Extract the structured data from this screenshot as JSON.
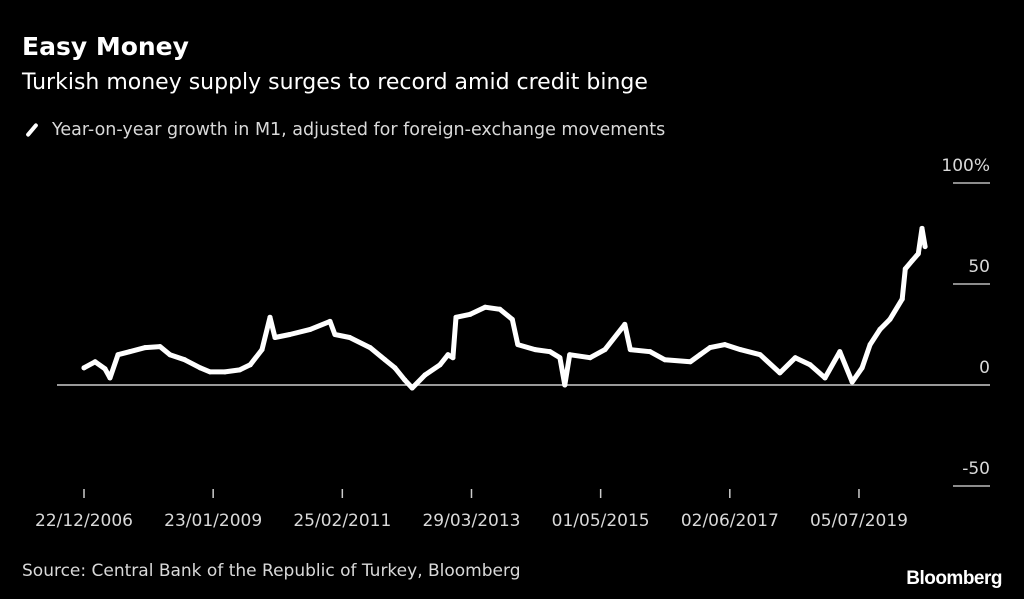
{
  "header": {
    "title": "Easy Money",
    "subtitle": "Turkish money supply surges to record amid credit binge"
  },
  "footer": {
    "source": "Source: Central Bank of the Republic of Turkey, Bloomberg",
    "logo": "Bloomberg"
  },
  "chart_data": {
    "type": "line",
    "title": "Easy Money",
    "subtitle": "Turkish money supply surges to record amid credit binge",
    "xlabel": "",
    "ylabel": "",
    "ylim": [
      -50,
      100
    ],
    "xlim": [
      2006.97,
      2020.58
    ],
    "grid": false,
    "legend_placement": "top-left",
    "y_ticks": [
      {
        "value": 100,
        "label": "100%"
      },
      {
        "value": 50,
        "label": "50"
      },
      {
        "value": 0,
        "label": "0"
      },
      {
        "value": -50,
        "label": "-50"
      }
    ],
    "x_ticks": [
      {
        "value": 2006.97,
        "label": "22/12/2006"
      },
      {
        "value": 2009.06,
        "label": "23/01/2009"
      },
      {
        "value": 2011.15,
        "label": "25/02/2011"
      },
      {
        "value": 2013.24,
        "label": "29/03/2013"
      },
      {
        "value": 2015.33,
        "label": "01/05/2015"
      },
      {
        "value": 2017.42,
        "label": "02/06/2017"
      },
      {
        "value": 2019.51,
        "label": "05/07/2019"
      }
    ],
    "series": [
      {
        "name": "Year-on-year growth in M1, adjusted for foreign-exchange movements",
        "color": "#ffffff",
        "x": [
          2006.97,
          2007.15,
          2007.31,
          2007.39,
          2007.52,
          2007.71,
          2007.96,
          2008.2,
          2008.36,
          2008.6,
          2008.85,
          2009.01,
          2009.25,
          2009.49,
          2009.66,
          2009.85,
          2009.98,
          2010.06,
          2010.3,
          2010.63,
          2010.95,
          2011.03,
          2011.27,
          2011.6,
          2011.84,
          2012.0,
          2012.16,
          2012.28,
          2012.49,
          2012.73,
          2012.86,
          2012.94,
          2012.99,
          2013.22,
          2013.46,
          2013.7,
          2013.9,
          2013.99,
          2014.27,
          2014.51,
          2014.67,
          2014.75,
          2014.83,
          2015.16,
          2015.4,
          2015.72,
          2015.81,
          2016.13,
          2016.37,
          2016.78,
          2016.94,
          2017.1,
          2017.34,
          2017.59,
          2017.91,
          2018.23,
          2018.48,
          2018.72,
          2018.96,
          2019.2,
          2019.4,
          2019.56,
          2019.69,
          2019.85,
          2020.01,
          2020.21,
          2020.26,
          2020.37,
          2020.47,
          2020.53,
          2020.58
        ],
        "values": [
          8.5,
          11.5,
          8,
          3.5,
          15,
          16.5,
          18.5,
          19,
          15,
          12.5,
          8.5,
          6.5,
          6.5,
          7.5,
          10,
          17.5,
          33.5,
          23.5,
          25,
          27.5,
          31.5,
          25,
          23.5,
          18.5,
          12.5,
          8.5,
          2.5,
          -1.5,
          5,
          10,
          15,
          13.5,
          33.5,
          35,
          38.5,
          37.5,
          32.5,
          20,
          17.5,
          16.5,
          13.5,
          0,
          15,
          13.5,
          17.5,
          30,
          17.5,
          16.5,
          12.5,
          11.5,
          15,
          18.5,
          20,
          17.5,
          15,
          6,
          13.5,
          10,
          3.5,
          16.5,
          1.5,
          8.5,
          20,
          27.5,
          32.5,
          42.5,
          57.5,
          61.5,
          65,
          77.5,
          68.5
        ]
      }
    ]
  }
}
